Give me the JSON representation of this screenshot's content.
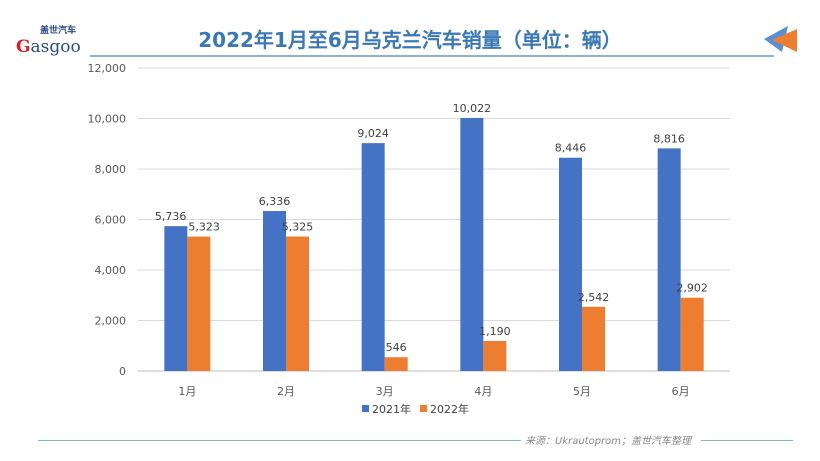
{
  "logo": {
    "cn": "盖世汽车",
    "en": "Gasgoo"
  },
  "title": "2022年1月至6月乌克兰汽车销量（单位：辆）",
  "source": "来源：Ukrautoprom；盖世汽车整理",
  "chart_data": {
    "type": "bar",
    "title": "2022年1月至6月乌克兰汽车销量（单位：辆）",
    "categories": [
      "1月",
      "2月",
      "3月",
      "4月",
      "5月",
      "6月"
    ],
    "series": [
      {
        "name": "2021年",
        "color": "#4472c4",
        "values": [
          5736,
          6336,
          9024,
          10022,
          8446,
          8816
        ],
        "labels": [
          "5,736",
          "6,336",
          "9,024",
          "10,022",
          "8,446",
          "8,816"
        ]
      },
      {
        "name": "2022年",
        "color": "#ed7d31",
        "values": [
          5323,
          5325,
          546,
          1190,
          2542,
          2902
        ],
        "labels": [
          "5,323",
          "5,325",
          "546",
          "1,190",
          "2,542",
          "2,902"
        ]
      }
    ],
    "ylim": [
      0,
      12000
    ],
    "yticks": [
      "0",
      "2,000",
      "4,000",
      "6,000",
      "8,000",
      "10,000",
      "12,000"
    ],
    "grid": true,
    "legend": "bottom"
  }
}
